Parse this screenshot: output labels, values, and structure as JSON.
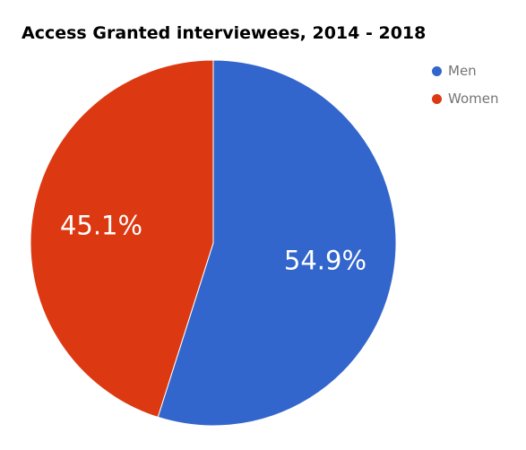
{
  "chart_data": {
    "type": "pie",
    "title": "Access Granted interviewees, 2014 - 2018",
    "slices": [
      {
        "label": "Men",
        "value": 54.9,
        "display": "54.9%",
        "color": "#3366cc"
      },
      {
        "label": "Women",
        "value": 45.1,
        "display": "45.1%",
        "color": "#dc3912"
      }
    ],
    "legend": {
      "position": "right"
    }
  }
}
